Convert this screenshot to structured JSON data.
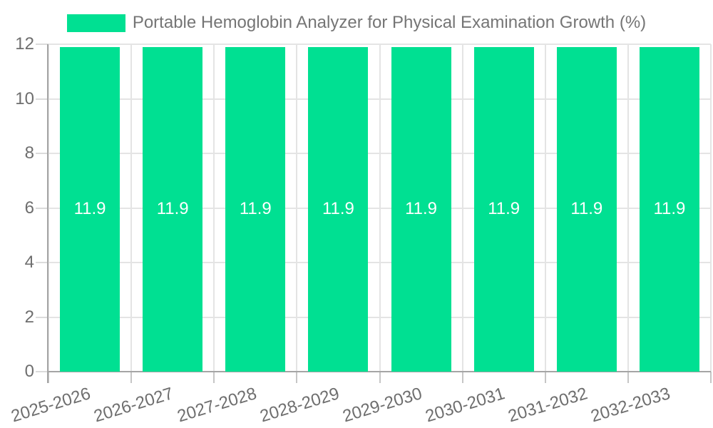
{
  "chart_data": {
    "type": "bar",
    "title": "Portable Hemoglobin Analyzer for Physical Examination Growth (%)",
    "legend_position": "top",
    "categories": [
      "2025-2026",
      "2026-2027",
      "2027-2028",
      "2028-2029",
      "2029-2030",
      "2030-2031",
      "2031-2032",
      "2032-2033"
    ],
    "series": [
      {
        "name": "Portable Hemoglobin Analyzer for Physical Examination Growth (%)",
        "values": [
          11.9,
          11.9,
          11.9,
          11.9,
          11.9,
          11.9,
          11.9,
          11.9
        ]
      }
    ],
    "data_labels": [
      "11.9",
      "11.9",
      "11.9",
      "11.9",
      "11.9",
      "11.9",
      "11.9",
      "11.9"
    ],
    "xlabel": "",
    "ylabel": "",
    "ylim": [
      0,
      12
    ],
    "yticks": [
      0,
      2,
      4,
      6,
      8,
      10,
      12
    ],
    "grid": true,
    "colors": {
      "bar": "#00E092",
      "bar_label": "#FFFFFF",
      "gridline": "#E4E4E4",
      "axis_line": "#A5A5A5",
      "tick_text": "#6E6E6E",
      "title_text": "#757575",
      "background": "#FFFFFF"
    }
  }
}
